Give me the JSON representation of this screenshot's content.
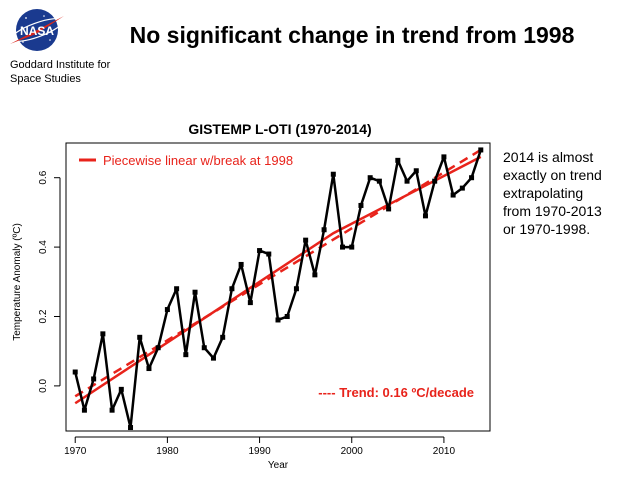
{
  "slide": {
    "title": "No significant change in trend from 1998",
    "logo_text": "NASA",
    "org_line1": "Goddard Institute for",
    "org_line2": "Space Studies"
  },
  "note": {
    "line1": "2014 is almost",
    "line2": "exactly on trend",
    "line3": "extrapolating",
    "line4": "from 1970-2013",
    "line5": "or 1970-1998."
  },
  "colors": {
    "data_line": "#000000",
    "trend": "#e8231b",
    "nasa_blue": "#1a3a8f",
    "nasa_red": "#d9261c"
  },
  "chart_data": {
    "type": "line",
    "title": "GISTEMP L-OTI (1970-2014)",
    "xlabel": "Year",
    "ylabel": "Temperature Anomaly (ºC)",
    "xlim": [
      1969,
      2015
    ],
    "ylim": [
      -0.13,
      0.7
    ],
    "x_ticks": [
      1970,
      1980,
      1990,
      2000,
      2010
    ],
    "y_ticks": [
      0.0,
      0.2,
      0.4,
      0.6
    ],
    "y_tick_labels": [
      "0.0",
      "0.2",
      "0.4",
      "0.6"
    ],
    "grid": false,
    "series": [
      {
        "name": "",
        "style": "line-with-square-markers",
        "x": [
          1970,
          1971,
          1972,
          1973,
          1974,
          1975,
          1976,
          1977,
          1978,
          1979,
          1980,
          1981,
          1982,
          1983,
          1984,
          1985,
          1986,
          1987,
          1988,
          1989,
          1990,
          1991,
          1992,
          1993,
          1994,
          1995,
          1996,
          1997,
          1998,
          1999,
          2000,
          2001,
          2002,
          2003,
          2004,
          2005,
          2006,
          2007,
          2008,
          2009,
          2010,
          2011,
          2012,
          2013,
          2014
        ],
        "values": [
          0.04,
          -0.07,
          0.02,
          0.15,
          -0.07,
          -0.01,
          -0.12,
          0.14,
          0.05,
          0.11,
          0.22,
          0.28,
          0.09,
          0.27,
          0.11,
          0.08,
          0.14,
          0.28,
          0.35,
          0.24,
          0.39,
          0.38,
          0.19,
          0.2,
          0.28,
          0.42,
          0.32,
          0.45,
          0.61,
          0.4,
          0.4,
          0.52,
          0.6,
          0.59,
          0.51,
          0.65,
          0.59,
          0.62,
          0.49,
          0.59,
          0.66,
          0.55,
          0.57,
          0.6,
          0.68
        ]
      },
      {
        "name": "Piecewise linear w/break at 1998",
        "style": "solid",
        "x": [
          1970,
          1998,
          2014
        ],
        "values": [
          -0.05,
          0.44,
          0.66
        ]
      },
      {
        "name": "---- Trend: 0.16 ºC/decade",
        "style": "dashed",
        "x": [
          1970,
          2014
        ],
        "values": [
          -0.03,
          0.68
        ]
      }
    ]
  }
}
